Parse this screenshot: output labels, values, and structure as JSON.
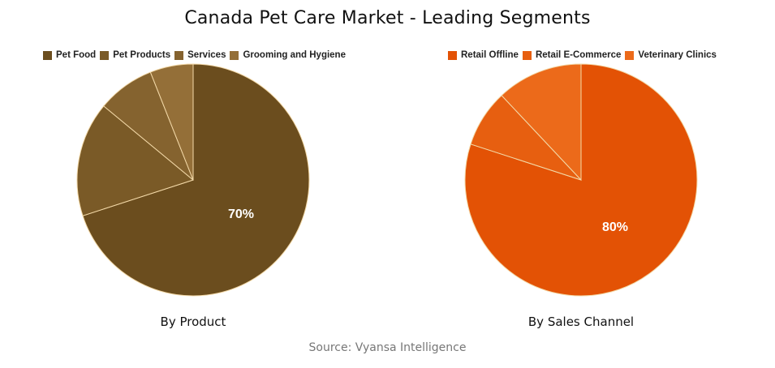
{
  "title": "Canada Pet Care Market - Leading Segments",
  "source": "Source: Vyansa Intelligence",
  "chart_data": [
    {
      "type": "pie",
      "title": "By Product",
      "categories": [
        "Pet Food",
        "Pet Products",
        "Services",
        "Grooming and Hygiene"
      ],
      "values": [
        70,
        16,
        8,
        6
      ],
      "colors": [
        "#6b4d1e",
        "#7a5a27",
        "#85632f",
        "#946f38"
      ],
      "labeled_value": "70%",
      "legend_position": "top"
    },
    {
      "type": "pie",
      "title": "By Sales Channel",
      "categories": [
        "Retail Offline",
        "Retail E-Commerce",
        "Veterinary Clinics"
      ],
      "values": [
        80,
        8,
        12
      ],
      "colors": [
        "#e35205",
        "#e75f10",
        "#ec6a1a"
      ],
      "labeled_value": "80%",
      "legend_position": "top"
    }
  ]
}
